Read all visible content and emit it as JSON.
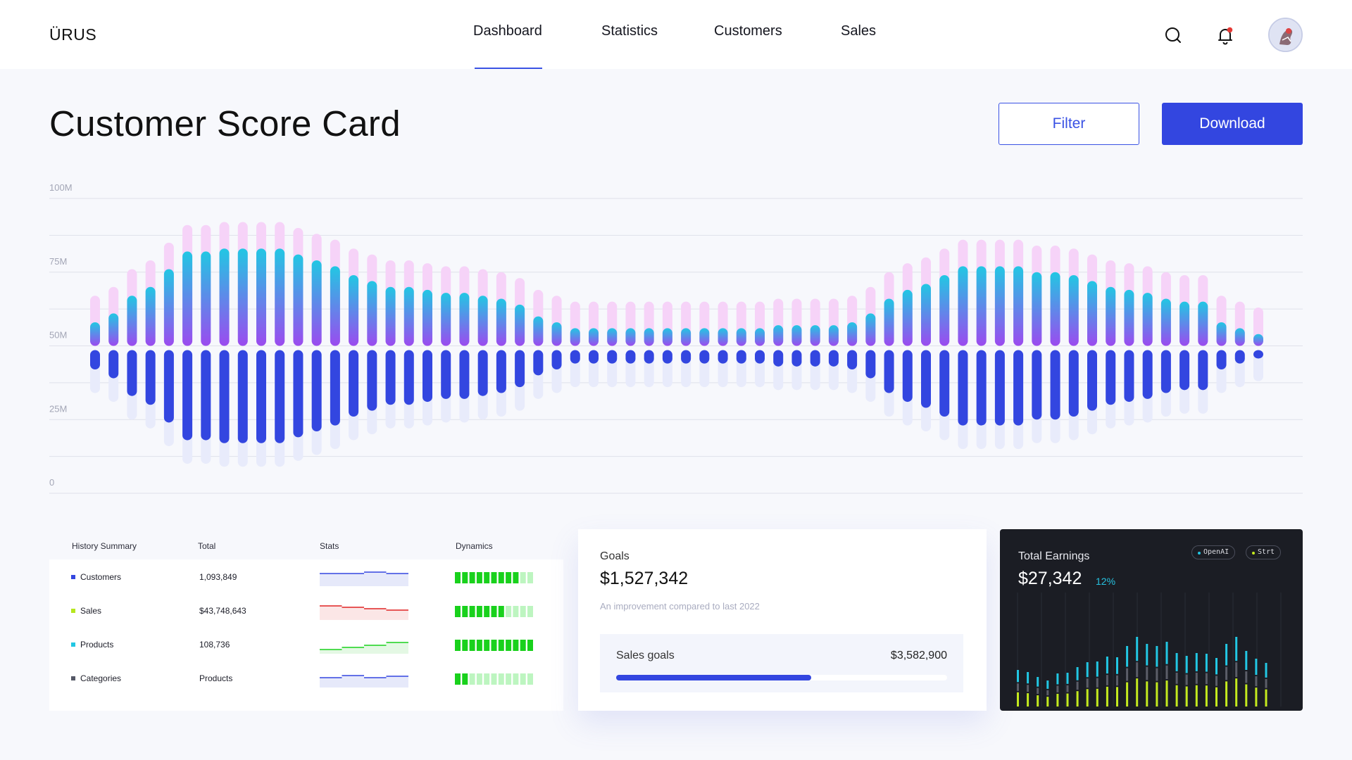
{
  "brand": "ÜRUS",
  "nav": [
    "Dashboard",
    "Statistics",
    "Customers",
    "Sales"
  ],
  "icons": {
    "search": "search-icon",
    "notifications": "bell-icon",
    "notification_dot_color": "#e53935",
    "avatar": "user-avatar"
  },
  "page": {
    "title": "Customer Score Card",
    "filter_label": "Filter",
    "download_label": "Download"
  },
  "colors": {
    "accent": "#3346e0",
    "cyan": "#22c7e3",
    "purple": "#9b4bef",
    "pink_light": "#f6d3f8",
    "blue_light": "#e8ebfb",
    "lime": "#c4ea1e"
  },
  "chart_data": {
    "type": "bar",
    "ytick_labels": [
      "100M",
      "75M",
      "50M",
      "25M",
      "0"
    ],
    "ylim": [
      0,
      100
    ],
    "baseline": 50,
    "grid": true,
    "series": [
      {
        "values": [
          58,
          61,
          67,
          70,
          76,
          82,
          82,
          83,
          83,
          83,
          83,
          81,
          79,
          77,
          74,
          72,
          70,
          70,
          69,
          68,
          68,
          67,
          66,
          64,
          60,
          58,
          56,
          56,
          56,
          56,
          56,
          56,
          56,
          56,
          56,
          56,
          56,
          57,
          57,
          57,
          57,
          58,
          61,
          66,
          69,
          71,
          74,
          77,
          77,
          77,
          77,
          75,
          75,
          74,
          72,
          70,
          69,
          68,
          66,
          65,
          65,
          58,
          56,
          54
        ]
      },
      {
        "values": [
          58,
          61,
          67,
          70,
          76,
          82,
          82,
          83,
          83,
          83,
          83,
          81,
          79,
          77,
          74,
          72,
          70,
          70,
          69,
          68,
          68,
          67,
          66,
          64,
          60,
          58,
          56,
          56,
          56,
          56,
          56,
          56,
          56,
          56,
          56,
          56,
          56,
          57,
          57,
          57,
          57,
          58,
          61,
          66,
          69,
          71,
          74,
          77,
          77,
          77,
          77,
          75,
          75,
          74,
          72,
          70,
          69,
          68,
          66,
          65,
          65,
          58,
          56,
          54
        ]
      }
    ]
  },
  "history": {
    "headers": [
      "History Summary",
      "Total",
      "Stats",
      "Dynamics"
    ],
    "rows": [
      {
        "name": "Customers",
        "total": "1,093,849",
        "color": "#3346e0",
        "spark_color": "#3346e0",
        "spark_fill": "#e6e9fa",
        "dyn_filled": 9
      },
      {
        "name": "Sales",
        "total": "$43,748,643",
        "color": "#b6e61e",
        "spark_color": "#e02424",
        "spark_fill": "#fbe6e6",
        "dyn_filled": 7
      },
      {
        "name": "Products",
        "total": "108,736",
        "color": "#22c7e3",
        "spark_color": "#19d11c",
        "spark_fill": "#e4f8e4",
        "dyn_filled": 11
      },
      {
        "name": "Categories",
        "total": "Products",
        "color": "#555866",
        "spark_color": "#3346e0",
        "spark_fill": "#e6e9fa",
        "dyn_filled": 2
      }
    ]
  },
  "goals": {
    "label": "Goals",
    "value": "$1,527,342",
    "note": "An improvement compared to last 2022",
    "sub_label": "Sales goals",
    "sub_value": "$3,582,900",
    "progress": 0.59
  },
  "earnings": {
    "label": "Total Earnings",
    "value": "$27,342",
    "change": "12%",
    "tags": [
      {
        "label": "OpenAI",
        "color": "#22c7e3"
      },
      {
        "label": "Strt",
        "color": "#c4ea1e"
      }
    ]
  }
}
